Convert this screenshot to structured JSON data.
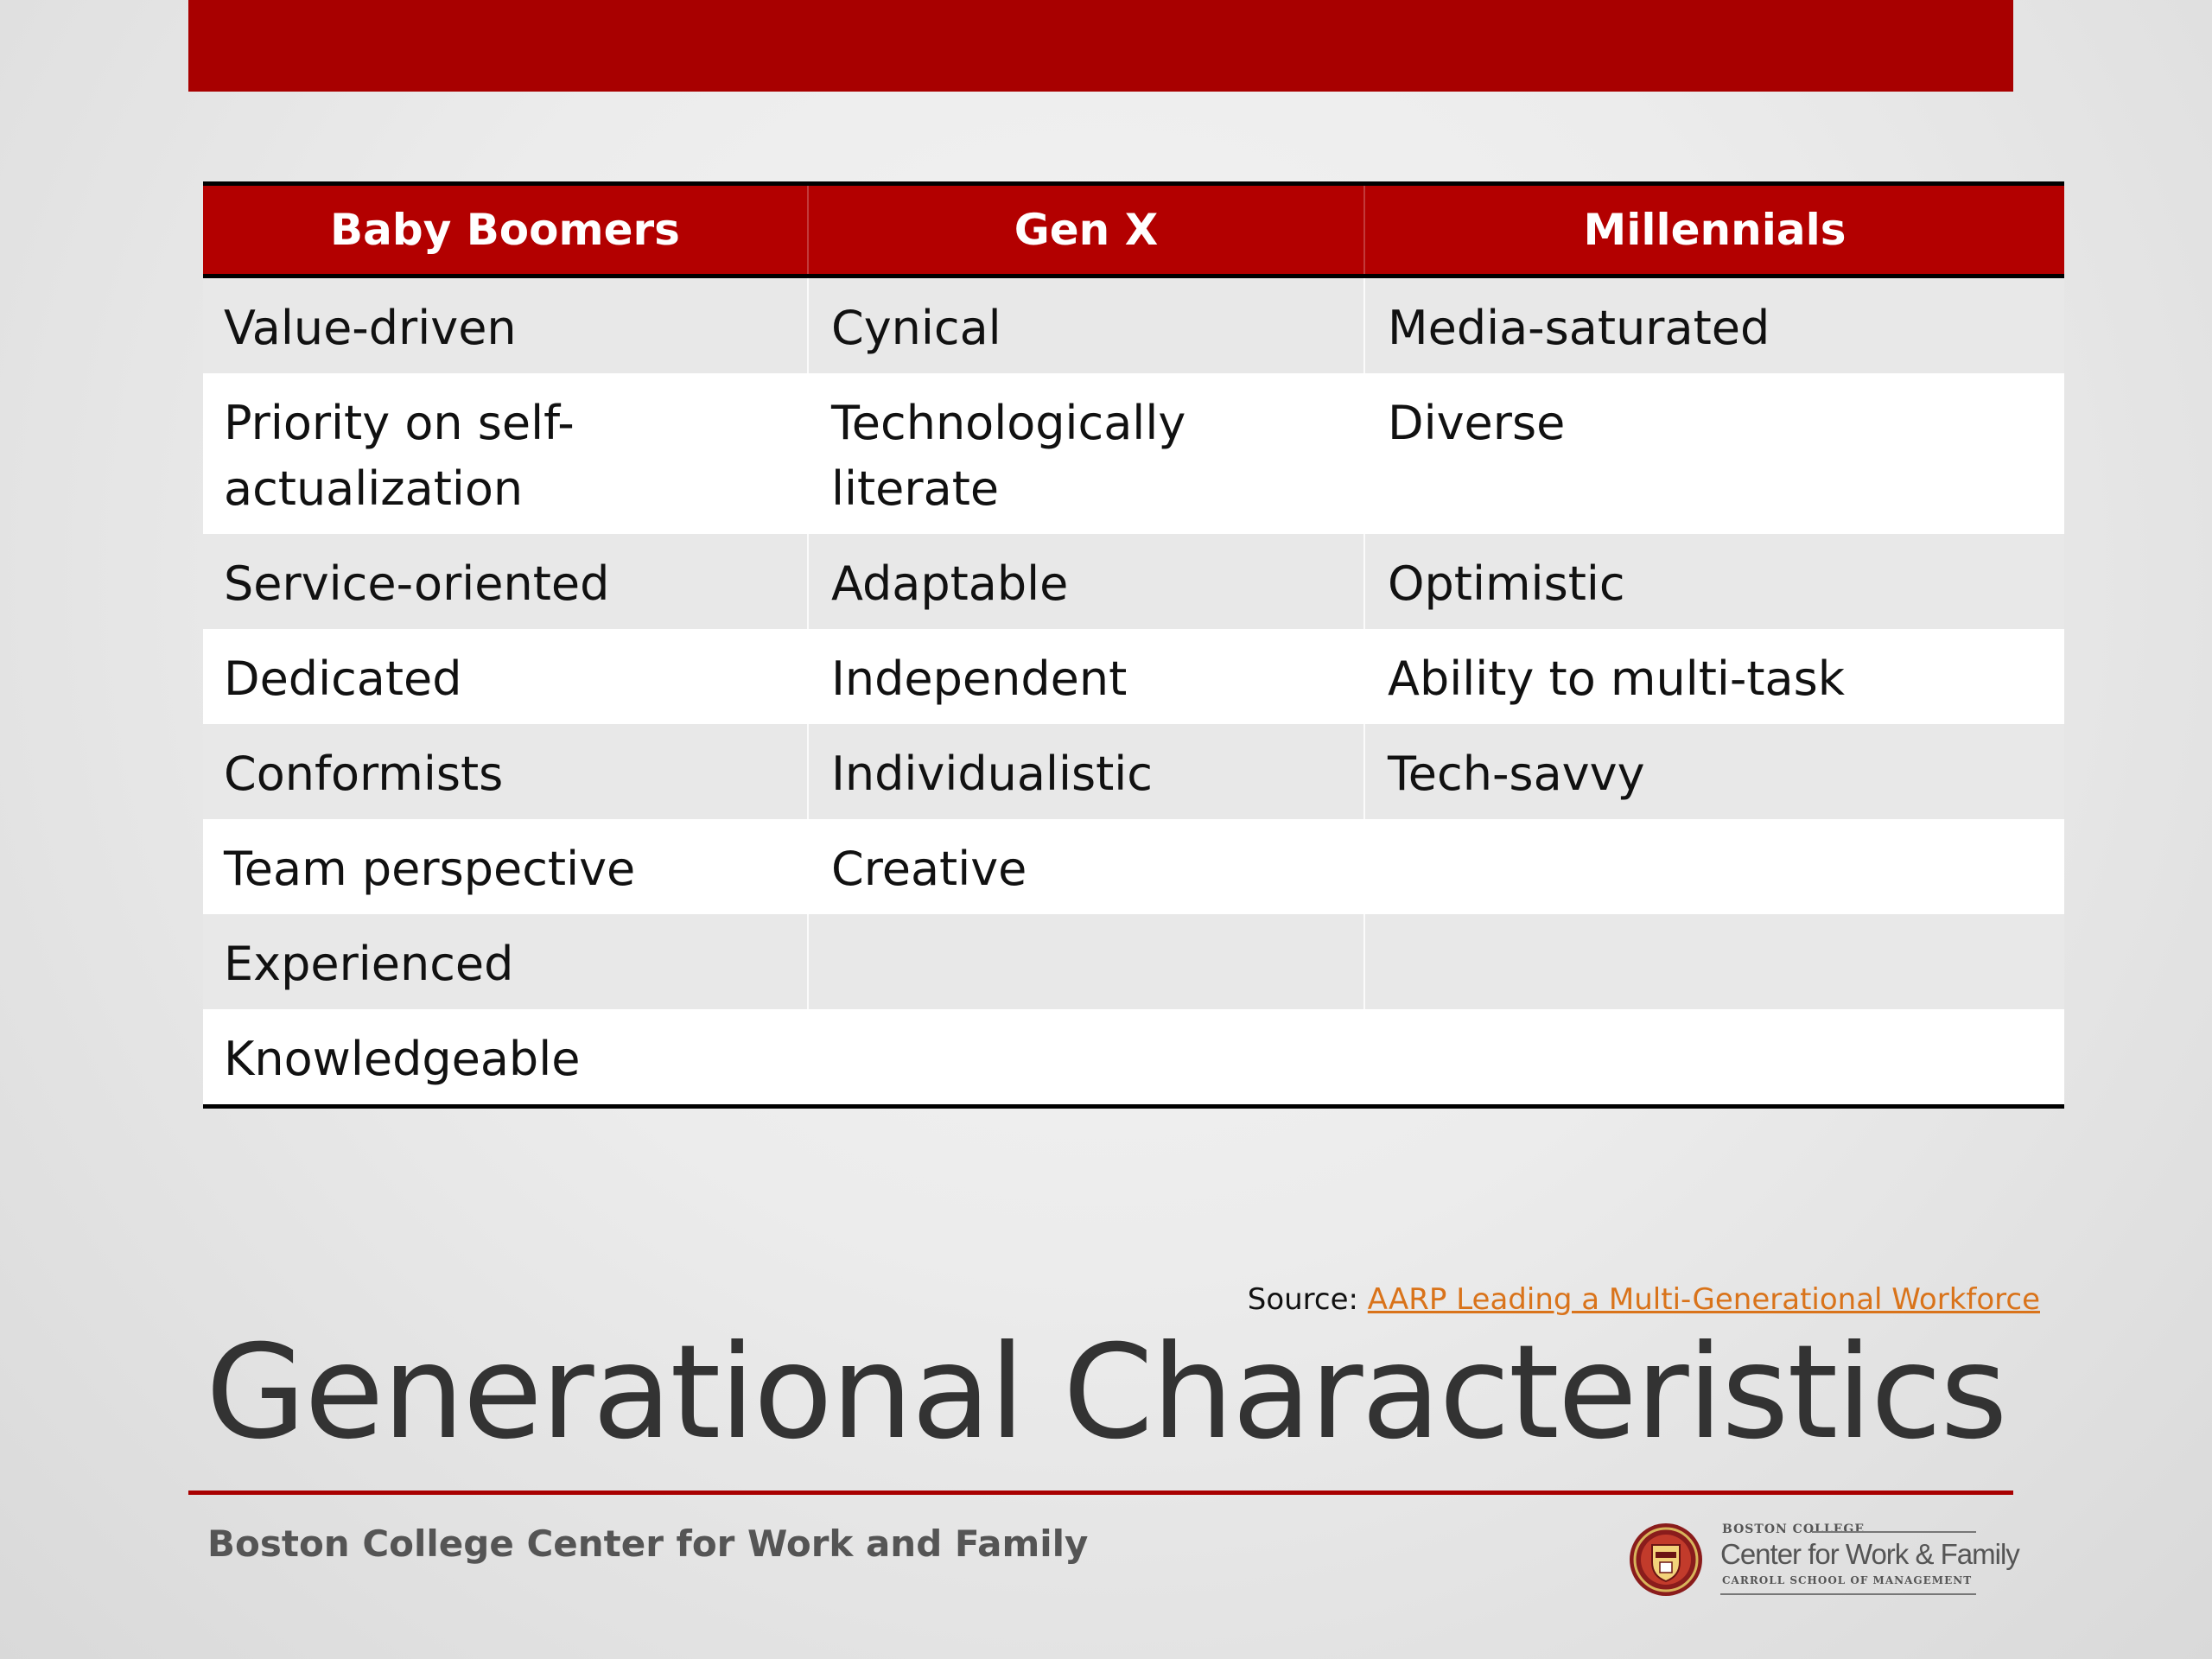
{
  "table": {
    "headers": [
      "Baby Boomers",
      "Gen X",
      "Millennials"
    ],
    "rows": [
      [
        "Value-driven",
        "Cynical",
        "Media-saturated"
      ],
      [
        "Priority on self-actualization",
        "Technologically literate",
        "Diverse"
      ],
      [
        "Service-oriented",
        "Adaptable",
        "Optimistic"
      ],
      [
        "Dedicated",
        "Independent",
        "Ability to multi-task"
      ],
      [
        "Conformists",
        "Individualistic",
        "Tech-savvy"
      ],
      [
        "Team perspective",
        "Creative",
        ""
      ],
      [
        "Experienced",
        "",
        ""
      ],
      [
        "Knowledgeable",
        "",
        ""
      ]
    ]
  },
  "source": {
    "prefix": "Source:",
    "link_text": "AARP Leading a Multi-Generational Workforce"
  },
  "title": "Generational Characteristics",
  "footer": {
    "organization": "Boston College Center for Work and Family",
    "logo": {
      "top": "BOSTON COLLEGE",
      "main": "Center for Work & Family",
      "sub": "CARROLL SCHOOL OF MANAGEMENT",
      "icon": "boston-college-seal-icon"
    }
  },
  "colors": {
    "accent": "#a80000",
    "header_bg": "#b30000",
    "link": "#d9731a",
    "title": "#333333"
  }
}
